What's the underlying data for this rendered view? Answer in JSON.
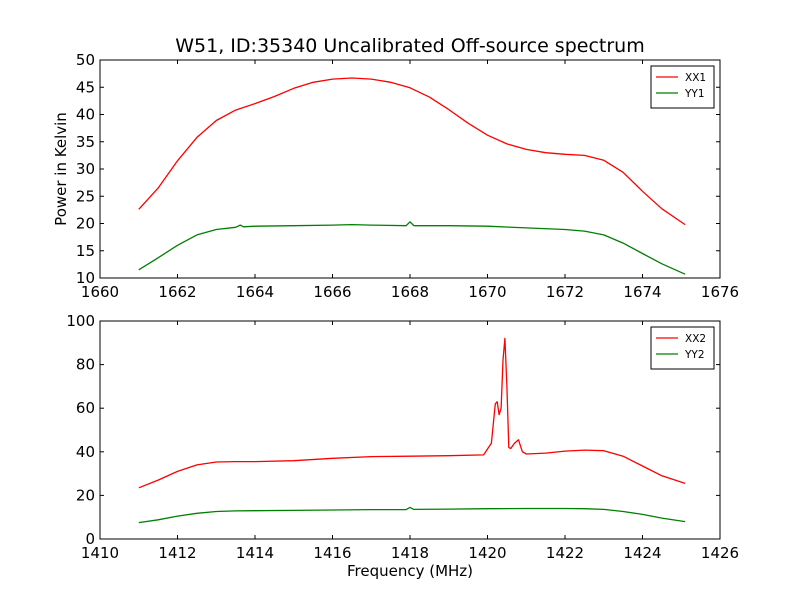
{
  "title": "W51, ID:35340 Uncalibrated Off-source spectrum",
  "chart_data": [
    {
      "type": "line",
      "xlabel": "",
      "ylabel": "Power in Kelvin",
      "xlim": [
        1660,
        1676
      ],
      "ylim": [
        10,
        50
      ],
      "xticks": [
        1660,
        1662,
        1664,
        1666,
        1668,
        1670,
        1672,
        1674,
        1676
      ],
      "yticks": [
        10,
        15,
        20,
        25,
        30,
        35,
        40,
        45,
        50
      ],
      "grid": false,
      "legend": "top-right",
      "series": [
        {
          "name": "XX1",
          "color": "#ff0000",
          "x": [
            1661.0,
            1661.5,
            1662.0,
            1662.5,
            1663.0,
            1663.5,
            1664.0,
            1664.5,
            1665.0,
            1665.5,
            1666.0,
            1666.5,
            1667.0,
            1667.5,
            1668.0,
            1668.5,
            1669.0,
            1669.5,
            1670.0,
            1670.5,
            1671.0,
            1671.5,
            1672.0,
            1672.5,
            1673.0,
            1673.5,
            1674.0,
            1674.5,
            1675.1
          ],
          "y": [
            22.6,
            26.5,
            31.5,
            35.8,
            38.9,
            40.8,
            42.0,
            43.3,
            44.8,
            45.9,
            46.5,
            46.7,
            46.5,
            45.9,
            44.9,
            43.2,
            40.9,
            38.4,
            36.2,
            34.6,
            33.6,
            33.0,
            32.7,
            32.5,
            31.6,
            29.4,
            25.9,
            22.7,
            19.8
          ]
        },
        {
          "name": "YY1",
          "color": "#007f00",
          "x": [
            1661.0,
            1661.5,
            1662.0,
            1662.5,
            1663.0,
            1663.5,
            1663.62,
            1663.7,
            1664.0,
            1665.0,
            1666.0,
            1666.5,
            1667.0,
            1667.9,
            1668.0,
            1668.1,
            1669.0,
            1670.0,
            1671.0,
            1672.0,
            1672.5,
            1673.0,
            1673.5,
            1674.0,
            1674.5,
            1675.1
          ],
          "y": [
            11.5,
            13.7,
            16.0,
            17.9,
            18.9,
            19.3,
            19.7,
            19.4,
            19.5,
            19.6,
            19.7,
            19.8,
            19.7,
            19.6,
            20.3,
            19.6,
            19.6,
            19.5,
            19.2,
            18.9,
            18.6,
            17.9,
            16.4,
            14.5,
            12.6,
            10.7
          ]
        }
      ]
    },
    {
      "type": "line",
      "xlabel": "Frequency (MHz)",
      "ylabel": "",
      "xlim": [
        1410,
        1426
      ],
      "ylim": [
        0,
        100
      ],
      "xticks": [
        1410,
        1412,
        1414,
        1416,
        1418,
        1420,
        1422,
        1424,
        1426
      ],
      "yticks": [
        0,
        20,
        40,
        60,
        80,
        100
      ],
      "grid": false,
      "legend": "top-right",
      "series": [
        {
          "name": "XX2",
          "color": "#ff0000",
          "x": [
            1411.0,
            1411.5,
            1412.0,
            1412.5,
            1413.0,
            1413.5,
            1414.0,
            1415.0,
            1416.0,
            1417.0,
            1418.0,
            1419.0,
            1419.9,
            1420.1,
            1420.2,
            1420.25,
            1420.3,
            1420.35,
            1420.4,
            1420.45,
            1420.5,
            1420.55,
            1420.6,
            1420.7,
            1420.8,
            1420.9,
            1421.0,
            1421.5,
            1422.0,
            1422.5,
            1423.0,
            1423.5,
            1424.0,
            1424.5,
            1425.1
          ],
          "y": [
            23.5,
            27.0,
            31.0,
            34.0,
            35.3,
            35.5,
            35.5,
            35.9,
            37.0,
            37.8,
            38.0,
            38.2,
            38.6,
            44.0,
            62.0,
            63.0,
            57.0,
            60.0,
            82.0,
            92.0,
            70.0,
            42.0,
            41.5,
            44.0,
            45.5,
            40.0,
            39.0,
            39.4,
            40.3,
            40.8,
            40.5,
            38.0,
            33.5,
            29.0,
            25.5
          ]
        },
        {
          "name": "YY2",
          "color": "#007f00",
          "x": [
            1411.0,
            1411.5,
            1412.0,
            1412.5,
            1413.0,
            1413.5,
            1414.0,
            1415.0,
            1416.0,
            1417.0,
            1417.9,
            1418.0,
            1418.1,
            1419.0,
            1420.0,
            1421.0,
            1422.0,
            1422.5,
            1423.0,
            1423.5,
            1424.0,
            1424.5,
            1425.1
          ],
          "y": [
            7.5,
            8.8,
            10.5,
            11.8,
            12.6,
            12.9,
            13.0,
            13.1,
            13.3,
            13.5,
            13.5,
            14.5,
            13.6,
            13.7,
            13.9,
            14.0,
            14.0,
            13.9,
            13.6,
            12.6,
            11.3,
            9.6,
            8.0
          ]
        }
      ]
    }
  ]
}
